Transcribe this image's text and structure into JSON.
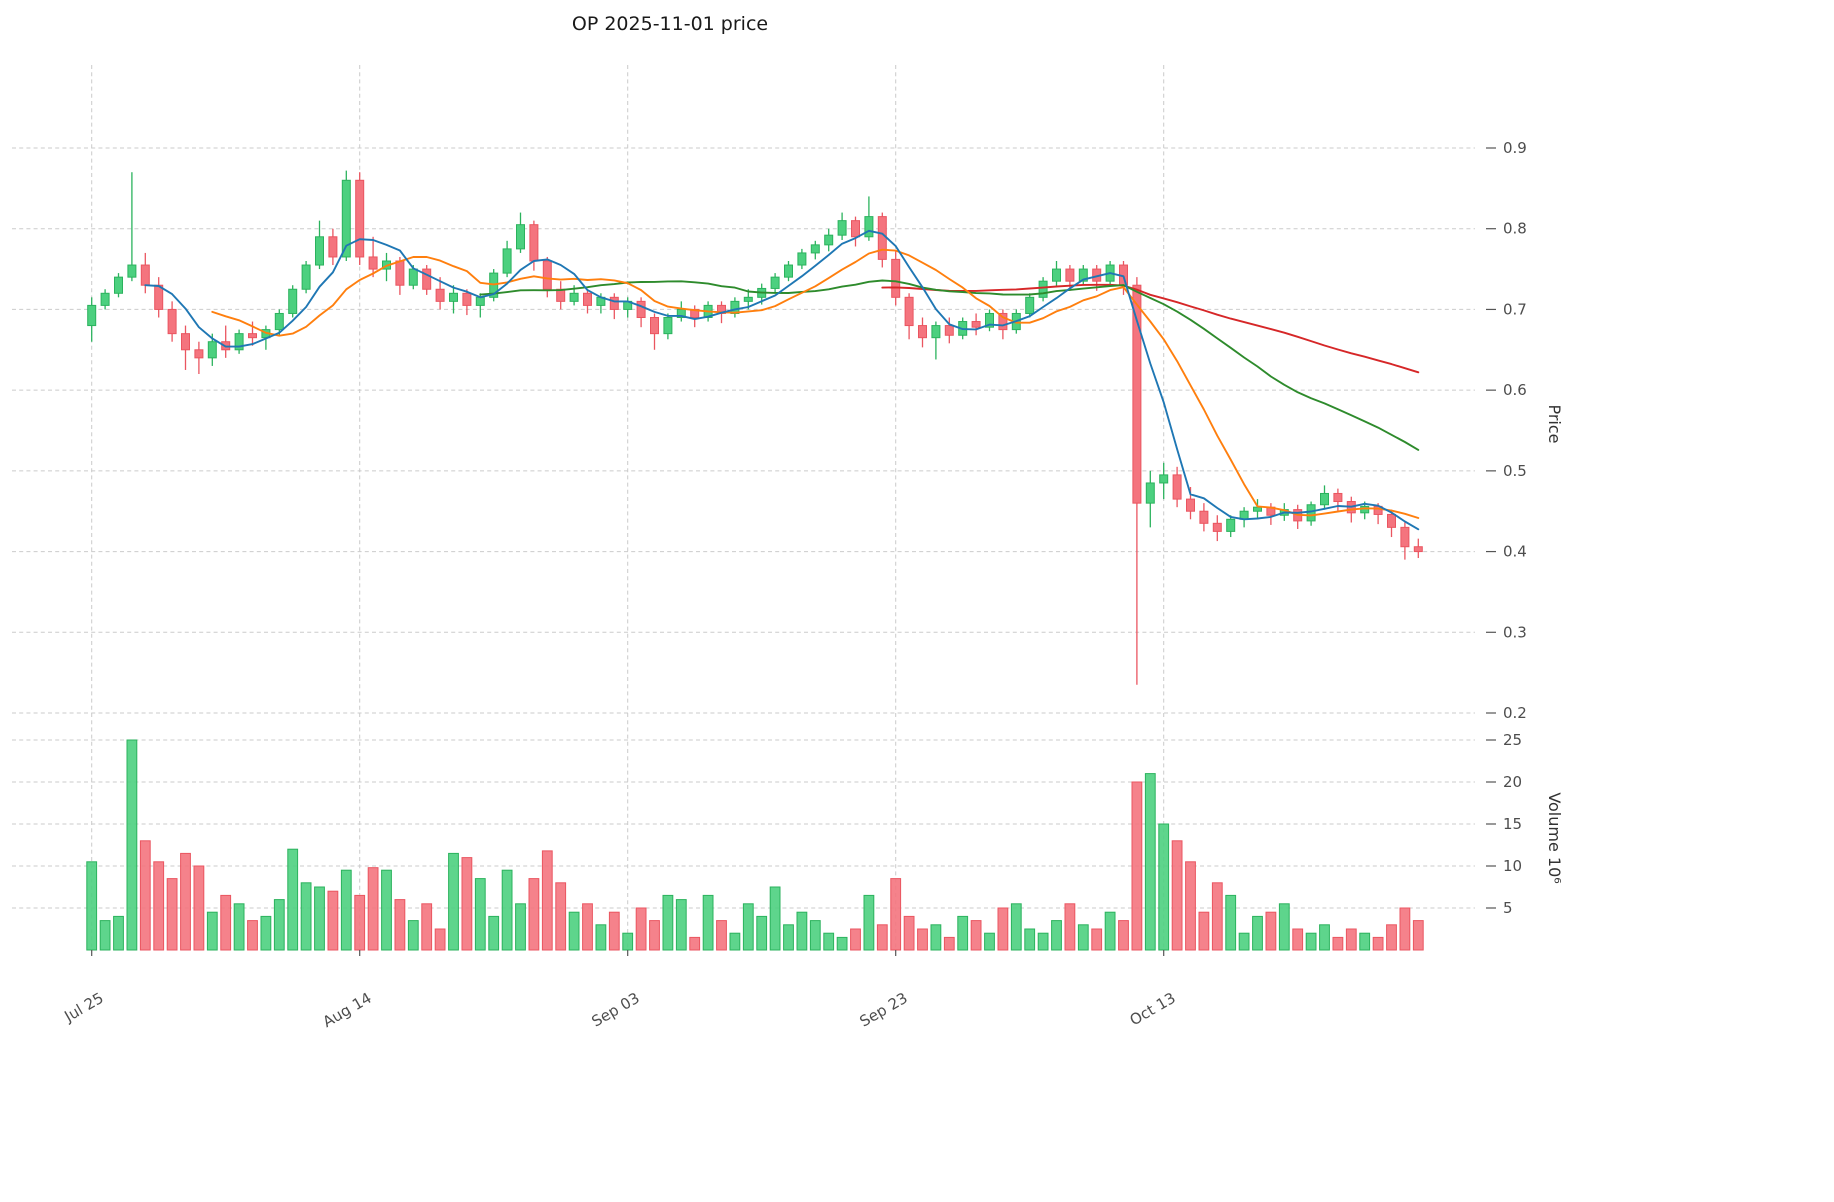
{
  "title": "OP  2025-11-01  price",
  "axes": {
    "price_label": "Price",
    "volume_label": "Volume  10⁶"
  },
  "chart_data": {
    "type": "candlestick",
    "symbol": "OP",
    "date_shown": "2025-11-01",
    "legend_position": "none",
    "grid": "dashed",
    "columns": [
      "open",
      "high",
      "low",
      "close",
      "volume_millions"
    ],
    "price_ticks": [
      0.2,
      0.3,
      0.4,
      0.5,
      0.6,
      0.7,
      0.8,
      0.9
    ],
    "volume_ticks": [
      5,
      10,
      15,
      20,
      25
    ],
    "x_ticks": [
      {
        "index": 0,
        "label": "Jul 25"
      },
      {
        "index": 20,
        "label": "Aug 14"
      },
      {
        "index": 40,
        "label": "Sep 03"
      },
      {
        "index": 60,
        "label": "Sep 23"
      },
      {
        "index": 80,
        "label": "Oct 13"
      }
    ],
    "moving_averages": [
      {
        "name": "MA60",
        "window": 60,
        "color": "#d62728"
      },
      {
        "name": "MA30",
        "window": 30,
        "color": "#2e8b2c"
      },
      {
        "name": "MA10",
        "window": 10,
        "color": "#ff7f0e"
      },
      {
        "name": "MA5",
        "window": 5,
        "color": "#1f77b4"
      }
    ],
    "colors": {
      "up": "#4cd07f",
      "up_edge": "#2bb25d",
      "down": "#f4747e",
      "down_edge": "#ea5560",
      "grid": "#cbcbcb",
      "tick_text": "#4d4d4d"
    },
    "candles": [
      [
        0.68,
        0.715,
        0.66,
        0.705,
        10.5
      ],
      [
        0.705,
        0.725,
        0.7,
        0.72,
        3.5
      ],
      [
        0.72,
        0.745,
        0.715,
        0.74,
        4.0
      ],
      [
        0.74,
        0.87,
        0.735,
        0.755,
        25.0
      ],
      [
        0.755,
        0.77,
        0.72,
        0.73,
        13.0
      ],
      [
        0.73,
        0.74,
        0.69,
        0.7,
        10.5
      ],
      [
        0.7,
        0.71,
        0.66,
        0.67,
        8.5
      ],
      [
        0.67,
        0.68,
        0.625,
        0.65,
        11.5
      ],
      [
        0.65,
        0.66,
        0.62,
        0.64,
        10.0
      ],
      [
        0.64,
        0.67,
        0.63,
        0.66,
        4.5
      ],
      [
        0.66,
        0.68,
        0.64,
        0.65,
        6.5
      ],
      [
        0.65,
        0.675,
        0.645,
        0.67,
        5.5
      ],
      [
        0.67,
        0.685,
        0.655,
        0.665,
        3.5
      ],
      [
        0.665,
        0.68,
        0.65,
        0.675,
        4.0
      ],
      [
        0.675,
        0.7,
        0.668,
        0.695,
        6.0
      ],
      [
        0.695,
        0.73,
        0.69,
        0.725,
        12.0
      ],
      [
        0.725,
        0.76,
        0.72,
        0.755,
        8.0
      ],
      [
        0.755,
        0.81,
        0.75,
        0.79,
        7.5
      ],
      [
        0.79,
        0.8,
        0.755,
        0.765,
        7.0
      ],
      [
        0.765,
        0.872,
        0.76,
        0.86,
        9.5
      ],
      [
        0.86,
        0.87,
        0.755,
        0.765,
        6.5
      ],
      [
        0.765,
        0.79,
        0.74,
        0.75,
        9.8
      ],
      [
        0.75,
        0.77,
        0.735,
        0.76,
        9.5
      ],
      [
        0.76,
        0.765,
        0.718,
        0.73,
        6.0
      ],
      [
        0.73,
        0.755,
        0.725,
        0.75,
        3.5
      ],
      [
        0.75,
        0.755,
        0.718,
        0.725,
        5.5
      ],
      [
        0.725,
        0.74,
        0.7,
        0.71,
        2.5
      ],
      [
        0.71,
        0.73,
        0.695,
        0.72,
        11.5
      ],
      [
        0.72,
        0.725,
        0.693,
        0.705,
        11.0
      ],
      [
        0.705,
        0.72,
        0.69,
        0.715,
        8.5
      ],
      [
        0.715,
        0.75,
        0.71,
        0.745,
        4.0
      ],
      [
        0.745,
        0.785,
        0.74,
        0.775,
        9.5
      ],
      [
        0.775,
        0.82,
        0.77,
        0.805,
        5.5
      ],
      [
        0.805,
        0.81,
        0.748,
        0.76,
        8.5
      ],
      [
        0.76,
        0.765,
        0.715,
        0.725,
        11.8
      ],
      [
        0.725,
        0.735,
        0.7,
        0.71,
        8.0
      ],
      [
        0.71,
        0.73,
        0.705,
        0.72,
        4.5
      ],
      [
        0.72,
        0.725,
        0.695,
        0.705,
        5.5
      ],
      [
        0.705,
        0.72,
        0.695,
        0.715,
        3.0
      ],
      [
        0.715,
        0.72,
        0.688,
        0.7,
        4.5
      ],
      [
        0.7,
        0.715,
        0.69,
        0.71,
        2.0
      ],
      [
        0.71,
        0.715,
        0.678,
        0.69,
        5.0
      ],
      [
        0.69,
        0.695,
        0.65,
        0.67,
        3.5
      ],
      [
        0.67,
        0.695,
        0.663,
        0.69,
        6.5
      ],
      [
        0.69,
        0.71,
        0.685,
        0.7,
        6.0
      ],
      [
        0.7,
        0.705,
        0.678,
        0.69,
        1.5
      ],
      [
        0.69,
        0.71,
        0.685,
        0.705,
        6.5
      ],
      [
        0.705,
        0.71,
        0.683,
        0.695,
        3.5
      ],
      [
        0.695,
        0.715,
        0.69,
        0.71,
        2.0
      ],
      [
        0.71,
        0.725,
        0.7,
        0.715,
        5.5
      ],
      [
        0.715,
        0.732,
        0.706,
        0.726,
        4.0
      ],
      [
        0.726,
        0.745,
        0.72,
        0.74,
        7.5
      ],
      [
        0.74,
        0.76,
        0.735,
        0.755,
        3.0
      ],
      [
        0.755,
        0.775,
        0.75,
        0.77,
        4.5
      ],
      [
        0.77,
        0.785,
        0.762,
        0.78,
        3.5
      ],
      [
        0.78,
        0.8,
        0.772,
        0.792,
        2.0
      ],
      [
        0.792,
        0.82,
        0.786,
        0.81,
        1.5
      ],
      [
        0.81,
        0.815,
        0.778,
        0.79,
        2.5
      ],
      [
        0.79,
        0.84,
        0.785,
        0.815,
        6.5
      ],
      [
        0.815,
        0.82,
        0.752,
        0.762,
        3.0
      ],
      [
        0.762,
        0.772,
        0.705,
        0.715,
        8.5
      ],
      [
        0.715,
        0.72,
        0.663,
        0.68,
        4.0
      ],
      [
        0.68,
        0.69,
        0.653,
        0.665,
        2.5
      ],
      [
        0.665,
        0.685,
        0.638,
        0.68,
        3.0
      ],
      [
        0.68,
        0.69,
        0.658,
        0.668,
        1.5
      ],
      [
        0.668,
        0.69,
        0.663,
        0.685,
        4.0
      ],
      [
        0.685,
        0.695,
        0.668,
        0.678,
        3.5
      ],
      [
        0.678,
        0.7,
        0.673,
        0.695,
        2.0
      ],
      [
        0.695,
        0.7,
        0.663,
        0.675,
        5.0
      ],
      [
        0.675,
        0.7,
        0.67,
        0.695,
        5.5
      ],
      [
        0.695,
        0.72,
        0.69,
        0.715,
        2.5
      ],
      [
        0.715,
        0.74,
        0.71,
        0.735,
        2.0
      ],
      [
        0.735,
        0.76,
        0.728,
        0.75,
        3.5
      ],
      [
        0.75,
        0.755,
        0.723,
        0.735,
        5.5
      ],
      [
        0.735,
        0.755,
        0.73,
        0.75,
        3.0
      ],
      [
        0.75,
        0.755,
        0.723,
        0.735,
        2.5
      ],
      [
        0.735,
        0.76,
        0.73,
        0.755,
        4.5
      ],
      [
        0.755,
        0.76,
        0.718,
        0.73,
        3.5
      ],
      [
        0.73,
        0.74,
        0.235,
        0.46,
        20.0
      ],
      [
        0.46,
        0.5,
        0.43,
        0.485,
        21.0
      ],
      [
        0.485,
        0.51,
        0.465,
        0.495,
        15.0
      ],
      [
        0.495,
        0.505,
        0.455,
        0.465,
        13.0
      ],
      [
        0.465,
        0.48,
        0.44,
        0.45,
        10.5
      ],
      [
        0.45,
        0.46,
        0.425,
        0.435,
        4.5
      ],
      [
        0.435,
        0.445,
        0.413,
        0.425,
        8.0
      ],
      [
        0.425,
        0.445,
        0.418,
        0.44,
        6.5
      ],
      [
        0.44,
        0.455,
        0.43,
        0.45,
        2.0
      ],
      [
        0.45,
        0.465,
        0.44,
        0.455,
        4.0
      ],
      [
        0.455,
        0.46,
        0.433,
        0.445,
        4.5
      ],
      [
        0.445,
        0.46,
        0.438,
        0.452,
        5.5
      ],
      [
        0.452,
        0.458,
        0.428,
        0.438,
        2.5
      ],
      [
        0.438,
        0.462,
        0.432,
        0.458,
        2.0
      ],
      [
        0.458,
        0.482,
        0.452,
        0.472,
        3.0
      ],
      [
        0.472,
        0.478,
        0.45,
        0.462,
        1.5
      ],
      [
        0.462,
        0.468,
        0.436,
        0.448,
        2.5
      ],
      [
        0.448,
        0.462,
        0.44,
        0.456,
        2.0
      ],
      [
        0.456,
        0.46,
        0.434,
        0.446,
        1.5
      ],
      [
        0.446,
        0.452,
        0.418,
        0.43,
        3.0
      ],
      [
        0.43,
        0.436,
        0.39,
        0.406,
        5.0
      ],
      [
        0.406,
        0.416,
        0.392,
        0.4,
        3.5
      ]
    ]
  }
}
